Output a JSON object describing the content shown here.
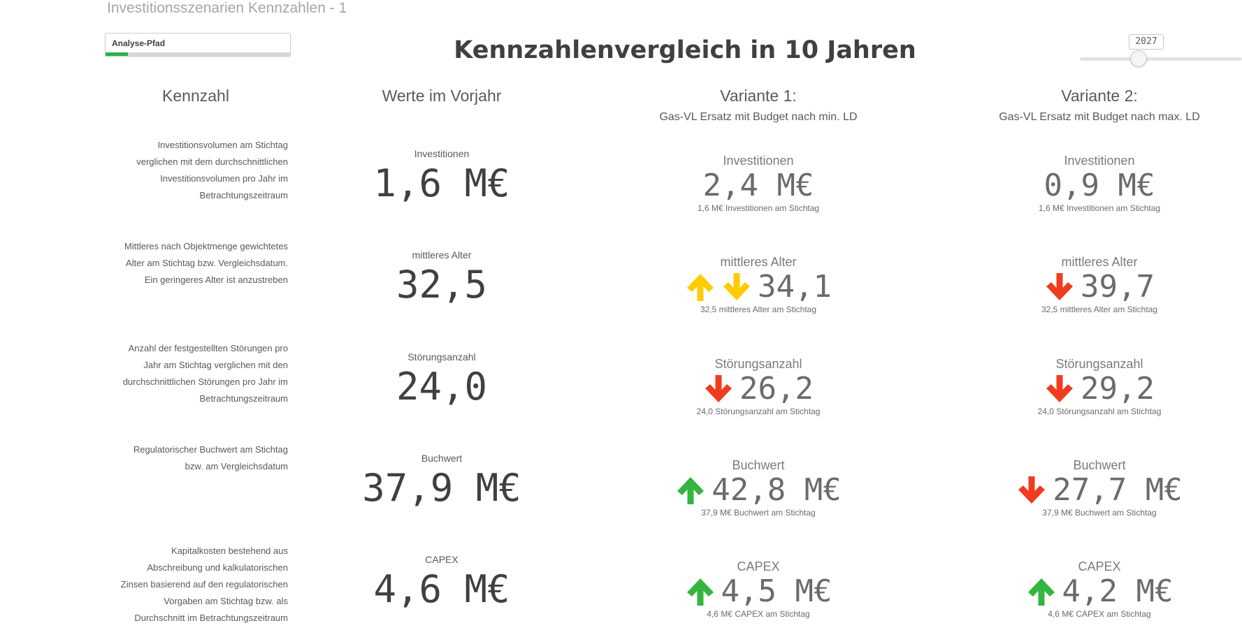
{
  "sheet_title": "Investitionsszenarien Kennzahlen - 1",
  "analysis_button": {
    "label": "Analyse-Pfad",
    "progress": 0.12,
    "progress_color": "#27b14a"
  },
  "main_title": "Kennzahlenvergleich in 10 Jahren",
  "year_slider": {
    "value": "2027"
  },
  "headers": {
    "kennzahl": "Kennzahl",
    "vorjahr": "Werte im Vorjahr",
    "v1_title": "Variante 1:",
    "v1_sub": "Gas-VL Ersatz mit Budget nach min. LD",
    "v2_title": "Variante 2:",
    "v2_sub": "Gas-VL Ersatz mit Budget nach max. LD"
  },
  "colors": {
    "green": "#35b440",
    "yellow": "#ffcc00",
    "red": "#f03c1e"
  },
  "rows": [
    {
      "description": [
        "Investitionsvolumen am Stichtag",
        "verglichen mit dem durchschnittlichen",
        "Investitionsvolumen pro Jahr im",
        "Betrachtungszeitraum"
      ],
      "prev_label": "Investitionen",
      "prev_value": "1,6 M€",
      "v1": {
        "label": "Investitionen",
        "value": "2,4 M€",
        "arrows": [],
        "sub": "1,6 M€ Investitionen am Stichtag"
      },
      "v2": {
        "label": "Investitionen",
        "value": "0,9 M€",
        "arrows": [],
        "sub": "1,6 M€ Investitionen am Stichtag"
      }
    },
    {
      "description": [
        "Mittleres nach Objektmenge gewichtetes",
        "Alter am Stichtag bzw. Vergleichsdatum.",
        "Ein geringeres Alter ist anzustreben"
      ],
      "prev_label": "mittleres Alter",
      "prev_value": "32,5",
      "v1": {
        "label": "mittleres Alter",
        "value": "34,1",
        "arrows": [
          {
            "dir": "up",
            "color": "yellow",
            "icon": "arrow-up-icon"
          },
          {
            "dir": "down",
            "color": "yellow",
            "icon": "arrow-down-icon"
          }
        ],
        "sub": "32,5 mittleres Alter am Stichtag"
      },
      "v2": {
        "label": "mittleres Alter",
        "value": "39,7",
        "arrows": [
          {
            "dir": "down",
            "color": "red",
            "icon": "arrow-down-icon"
          }
        ],
        "sub": "32,5 mittleres Alter am Stichtag"
      }
    },
    {
      "description": [
        "Anzahl der festgestellten Störungen pro",
        "Jahr am Stichtag verglichen mit den",
        "durchschnittlichen Störungen pro Jahr im",
        "Betrachtungszeitraum"
      ],
      "prev_label": "Störungsanzahl",
      "prev_value": "24,0",
      "v1": {
        "label": "Störungsanzahl",
        "value": "26,2",
        "arrows": [
          {
            "dir": "down",
            "color": "red",
            "icon": "arrow-down-icon"
          }
        ],
        "sub": "24,0 Störungsanzahl am Stichtag"
      },
      "v2": {
        "label": "Störungsanzahl",
        "value": "29,2",
        "arrows": [
          {
            "dir": "down",
            "color": "red",
            "icon": "arrow-down-icon"
          }
        ],
        "sub": "24,0 Störungsanzahl am Stichtag"
      }
    },
    {
      "description": [
        "Regulatorischer Buchwert am Stichtag",
        "bzw. am Vergleichsdatum"
      ],
      "prev_label": "Buchwert",
      "prev_value": "37,9 M€",
      "v1": {
        "label": "Buchwert",
        "value": "42,8 M€",
        "arrows": [
          {
            "dir": "up",
            "color": "green",
            "icon": "arrow-up-icon"
          }
        ],
        "sub": "37,9 M€ Buchwert am Stichtag"
      },
      "v2": {
        "label": "Buchwert",
        "value": "27,7 M€",
        "arrows": [
          {
            "dir": "down",
            "color": "red",
            "icon": "arrow-down-icon"
          }
        ],
        "sub": "37,9 M€ Buchwert am Stichtag"
      }
    },
    {
      "description": [
        "Kapitalkosten bestehend aus",
        "Abschreibung und kalkulatorischen",
        "Zinsen basierend auf den regulatorischen",
        "Vorgaben am Stichtag bzw. als",
        "Durchschnitt im Betrachtungszeitraum"
      ],
      "prev_label": "CAPEX",
      "prev_value": "4,6 M€",
      "v1": {
        "label": "CAPEX",
        "value": "4,5 M€",
        "arrows": [
          {
            "dir": "up",
            "color": "green",
            "icon": "arrow-up-icon"
          }
        ],
        "sub": "4,6 M€ CAPEX am Stichtag"
      },
      "v2": {
        "label": "CAPEX",
        "value": "4,2 M€",
        "arrows": [
          {
            "dir": "up",
            "color": "green",
            "icon": "arrow-up-icon"
          }
        ],
        "sub": "4,6 M€ CAPEX am Stichtag"
      }
    }
  ]
}
